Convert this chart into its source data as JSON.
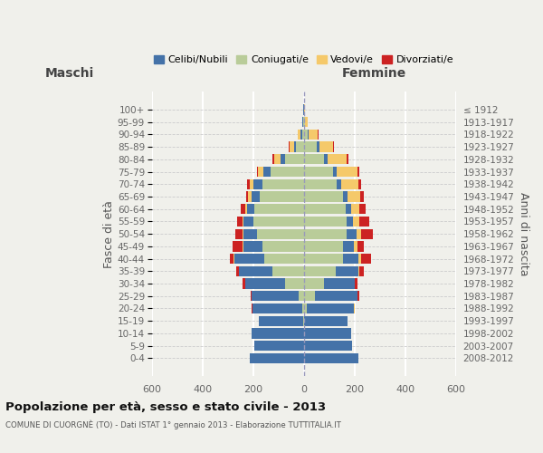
{
  "age_groups": [
    "0-4",
    "5-9",
    "10-14",
    "15-19",
    "20-24",
    "25-29",
    "30-34",
    "35-39",
    "40-44",
    "45-49",
    "50-54",
    "55-59",
    "60-64",
    "65-69",
    "70-74",
    "75-79",
    "80-84",
    "85-89",
    "90-94",
    "95-99",
    "100+"
  ],
  "birth_years": [
    "2008-2012",
    "2003-2007",
    "1998-2002",
    "1993-1997",
    "1988-1992",
    "1983-1987",
    "1978-1982",
    "1973-1977",
    "1968-1972",
    "1963-1967",
    "1958-1962",
    "1953-1957",
    "1948-1952",
    "1943-1947",
    "1938-1942",
    "1933-1937",
    "1928-1932",
    "1923-1927",
    "1918-1922",
    "1913-1917",
    "≤ 1912"
  ],
  "male": {
    "celibi": [
      215,
      195,
      205,
      175,
      195,
      185,
      155,
      130,
      120,
      75,
      55,
      38,
      30,
      32,
      35,
      30,
      18,
      8,
      5,
      3,
      2
    ],
    "coniugati": [
      0,
      0,
      0,
      2,
      8,
      20,
      75,
      125,
      155,
      165,
      185,
      200,
      195,
      175,
      165,
      130,
      75,
      30,
      8,
      2,
      0
    ],
    "vedovi": [
      0,
      0,
      0,
      0,
      0,
      0,
      1,
      1,
      2,
      2,
      3,
      5,
      5,
      12,
      15,
      20,
      25,
      20,
      10,
      2,
      0
    ],
    "divorziati": [
      0,
      0,
      0,
      0,
      5,
      5,
      10,
      12,
      15,
      38,
      28,
      22,
      18,
      10,
      8,
      5,
      5,
      2,
      0,
      0,
      0
    ]
  },
  "female": {
    "nubili": [
      215,
      190,
      185,
      170,
      185,
      165,
      120,
      90,
      60,
      42,
      38,
      25,
      20,
      18,
      18,
      15,
      12,
      10,
      5,
      3,
      2
    ],
    "coniugate": [
      0,
      0,
      0,
      2,
      12,
      45,
      80,
      125,
      155,
      155,
      168,
      168,
      165,
      155,
      130,
      115,
      80,
      50,
      15,
      3,
      0
    ],
    "vedove": [
      0,
      0,
      0,
      0,
      2,
      2,
      2,
      5,
      10,
      15,
      20,
      25,
      35,
      48,
      68,
      80,
      75,
      55,
      35,
      8,
      2
    ],
    "divorziate": [
      0,
      0,
      0,
      0,
      3,
      5,
      10,
      15,
      38,
      25,
      45,
      38,
      22,
      15,
      10,
      10,
      8,
      5,
      2,
      0,
      0
    ]
  },
  "colors": {
    "celibi": "#4472a8",
    "coniugati": "#b9cc99",
    "vedovi": "#f5c96a",
    "divorziati": "#cc2222"
  },
  "xlim": 600,
  "title": "Popolazione per età, sesso e stato civile - 2013",
  "subtitle": "COMUNE DI CUORGNÈ (TO) - Dati ISTAT 1° gennaio 2013 - Elaborazione TUTTITALIA.IT",
  "ylabel_left": "Fasce di età",
  "ylabel_right": "Anni di nascita",
  "legend_labels": [
    "Celibi/Nubili",
    "Coniugati/e",
    "Vedovi/e",
    "Divorziati/e"
  ],
  "maschi_label": "Maschi",
  "femmine_label": "Femmine",
  "background_color": "#f0f0eb"
}
